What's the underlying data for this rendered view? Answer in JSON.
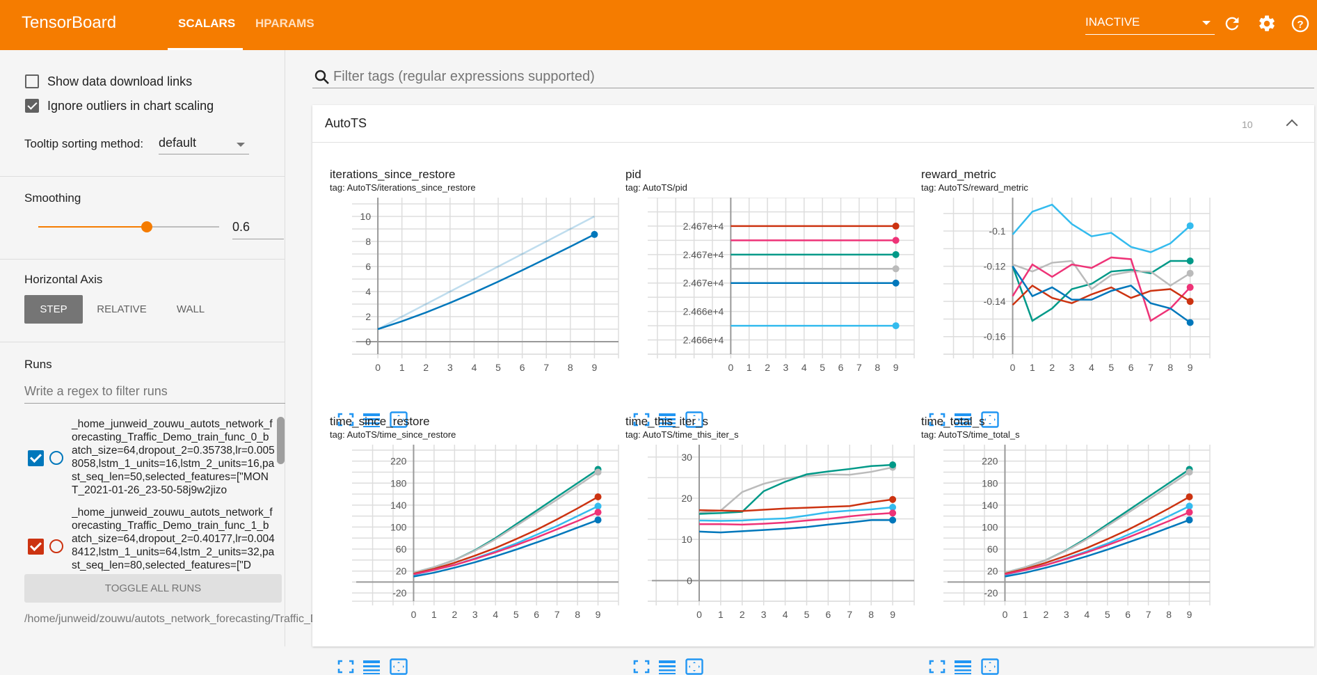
{
  "header": {
    "title": "TensorBoard",
    "tabs": [
      {
        "label": "SCALARS",
        "active": true
      },
      {
        "label": "HPARAMS",
        "active": false
      }
    ],
    "status_select": "INACTIVE",
    "icons": [
      "refresh-icon",
      "settings-icon",
      "help-icon"
    ]
  },
  "colors": {
    "brand": "#f57c00",
    "icon_blue": "#2196f3"
  },
  "sidebar": {
    "show_download_links": {
      "label": "Show data download links",
      "checked": false
    },
    "ignore_outliers": {
      "label": "Ignore outliers in chart scaling",
      "checked": true
    },
    "tooltip_sorting": {
      "label": "Tooltip sorting method:",
      "value": "default"
    },
    "smoothing": {
      "label": "Smoothing",
      "value": "0.6",
      "fraction": 0.6
    },
    "horizontal_axis": {
      "label": "Horizontal Axis",
      "options": [
        "STEP",
        "RELATIVE",
        "WALL"
      ],
      "selected": "STEP"
    },
    "runs": {
      "label": "Runs",
      "filter_placeholder": "Write a regex to filter runs",
      "items": [
        {
          "name": "_home_junweid_zouwu_autots_network_forecasting_Traffic_Demo_train_func_0_batch_size=64,dropout_2=0.35738,lr=0.0058058,lstm_1_units=16,lstm_2_units=16,past_seq_len=50,selected_features=[\"MONT_2021-01-26_23-50-58j9w2jizo",
          "color": "#0077bb",
          "checked": true
        },
        {
          "name": "_home_junweid_zouwu_autots_network_forecasting_Traffic_Demo_train_func_1_batch_size=64,dropout_2=0.40177,lr=0.0048412,lstm_1_units=64,lstm_2_units=32,past_seq_len=80,selected_features=[\"D",
          "color": "#cc3311",
          "checked": true
        }
      ],
      "toggle_all": "TOGGLE ALL RUNS",
      "logdir": "/home/junweid/zouwu/autots_network_forecasting/Traffic_Demo_leaderboard/"
    }
  },
  "main": {
    "filter_placeholder": "Filter tags (regular expressions supported)",
    "card": {
      "title": "AutoTS",
      "count": "10"
    }
  },
  "chart_data": [
    {
      "type": "line",
      "title": "iterations_since_restore",
      "tag": "tag: AutoTS/iterations_since_restore",
      "xlim": [
        -0.9,
        10
      ],
      "ylim": [
        -1,
        11.5
      ],
      "xticks": [
        0,
        1,
        2,
        3,
        4,
        5,
        6,
        7,
        8,
        9
      ],
      "yticks": [
        0,
        2,
        4,
        6,
        8,
        10
      ],
      "ytick_labels": [
        "0",
        "2",
        "4",
        "6",
        "8",
        "10"
      ],
      "grid": true,
      "series": [
        {
          "color": "#0077bb",
          "raw": [
            1,
            2,
            3,
            4,
            5,
            6,
            7,
            8,
            9,
            10
          ],
          "values": [
            1,
            1.63,
            2.33,
            3.1,
            3.92,
            4.79,
            5.7,
            6.64,
            7.59,
            8.56
          ]
        }
      ]
    },
    {
      "type": "line",
      "title": "pid",
      "tag": "tag: AutoTS/pid",
      "xlim": [
        -4.3,
        10
      ],
      "ylim": [
        24665,
        24676
      ],
      "xticks": [
        0,
        1,
        2,
        3,
        4,
        5,
        6,
        7,
        8,
        9
      ],
      "yticks": [
        24674,
        24672,
        24670,
        24668,
        24666
      ],
      "ytick_labels": [
        "2.467e+4",
        "2.467e+4",
        "2.467e+4",
        "2.466e+4",
        "2.466e+4"
      ],
      "grid": true,
      "series": [
        {
          "color": "#cc3311",
          "values": [
            24674,
            24674,
            24674,
            24674,
            24674,
            24674,
            24674,
            24674,
            24674,
            24674
          ]
        },
        {
          "color": "#ee3377",
          "values": [
            24673,
            24673,
            24673,
            24673,
            24673,
            24673,
            24673,
            24673,
            24673,
            24673
          ]
        },
        {
          "color": "#009988",
          "values": [
            24672,
            24672,
            24672,
            24672,
            24672,
            24672,
            24672,
            24672,
            24672,
            24672
          ]
        },
        {
          "color": "#bbbbbb",
          "values": [
            24671,
            24671,
            24671,
            24671,
            24671,
            24671,
            24671,
            24671,
            24671,
            24671
          ]
        },
        {
          "color": "#0077bb",
          "values": [
            24670,
            24670,
            24670,
            24670,
            24670,
            24670,
            24670,
            24670,
            24670,
            24670
          ]
        },
        {
          "color": "#33bbee",
          "values": [
            24667,
            24667,
            24667,
            24667,
            24667,
            24667,
            24667,
            24667,
            24667,
            24667
          ]
        }
      ]
    },
    {
      "type": "line",
      "title": "reward_metric",
      "tag": "tag: AutoTS/reward_metric",
      "xlim": [
        -3.3,
        10
      ],
      "ylim": [
        -0.17,
        -0.081
      ],
      "xticks": [
        0,
        1,
        2,
        3,
        4,
        5,
        6,
        7,
        8,
        9
      ],
      "yticks": [
        -0.1,
        -0.12,
        -0.14,
        -0.16
      ],
      "ytick_labels": [
        "-0.1",
        "-0.12",
        "-0.14",
        "-0.16"
      ],
      "grid": true,
      "series": [
        {
          "color": "#33bbee",
          "values": [
            -0.102,
            -0.089,
            -0.085,
            -0.096,
            -0.103,
            -0.101,
            -0.109,
            -0.112,
            -0.107,
            -0.097
          ]
        },
        {
          "color": "#009988",
          "values": [
            -0.12,
            -0.151,
            -0.144,
            -0.133,
            -0.13,
            -0.123,
            -0.122,
            -0.124,
            -0.117,
            -0.117
          ]
        },
        {
          "color": "#bbbbbb",
          "values": [
            -0.119,
            -0.123,
            -0.118,
            -0.117,
            -0.133,
            -0.125,
            -0.123,
            -0.123,
            -0.131,
            -0.124
          ]
        },
        {
          "color": "#ee3377",
          "values": [
            -0.137,
            -0.119,
            -0.126,
            -0.119,
            -0.121,
            -0.115,
            -0.116,
            -0.151,
            -0.144,
            -0.132
          ]
        },
        {
          "color": "#cc3311",
          "values": [
            -0.142,
            -0.131,
            -0.138,
            -0.141,
            -0.136,
            -0.132,
            -0.138,
            -0.134,
            -0.133,
            -0.14
          ]
        },
        {
          "color": "#0077bb",
          "values": [
            -0.12,
            -0.137,
            -0.132,
            -0.139,
            -0.139,
            -0.134,
            -0.131,
            -0.141,
            -0.144,
            -0.152
          ]
        }
      ]
    },
    {
      "type": "line",
      "title": "time_since_restore",
      "tag": "tag: AutoTS/time_since_restore",
      "xlim": [
        -2.8,
        10
      ],
      "ylim": [
        -35,
        250
      ],
      "xticks": [
        0,
        1,
        2,
        3,
        4,
        5,
        6,
        7,
        8,
        9
      ],
      "yticks": [
        -20,
        20,
        60,
        100,
        140,
        180,
        220
      ],
      "ytick_labels": [
        "-20",
        "20",
        "60",
        "100",
        "140",
        "180",
        "220"
      ],
      "grid": true,
      "series": [
        {
          "color": "#009988",
          "values": [
            17,
            27,
            40,
            58,
            80,
            105,
            130,
            155,
            180,
            205
          ]
        },
        {
          "color": "#bbbbbb",
          "values": [
            17,
            27,
            40,
            57,
            78,
            102,
            126,
            150,
            175,
            200
          ]
        },
        {
          "color": "#cc3311",
          "values": [
            15,
            24,
            35,
            48,
            62,
            78,
            95,
            114,
            134,
            155
          ]
        },
        {
          "color": "#33bbee",
          "values": [
            13,
            22,
            31,
            43,
            56,
            70,
            86,
            102,
            120,
            138
          ]
        },
        {
          "color": "#ee3377",
          "values": [
            14,
            22,
            31,
            42,
            54,
            67,
            81,
            96,
            111,
            127
          ]
        },
        {
          "color": "#0077bb",
          "values": [
            10,
            17,
            26,
            36,
            47,
            59,
            72,
            85,
            99,
            113
          ]
        }
      ]
    },
    {
      "type": "line",
      "title": "time_this_iter_s",
      "tag": "tag: AutoTS/time_this_iter_s",
      "xlim": [
        -2.2,
        10
      ],
      "ylim": [
        -5,
        33
      ],
      "xticks": [
        0,
        1,
        2,
        3,
        4,
        5,
        6,
        7,
        8,
        9
      ],
      "yticks": [
        0,
        10,
        20,
        30
      ],
      "ytick_labels": [
        "0",
        "10",
        "20",
        "30"
      ],
      "grid": true,
      "series": [
        {
          "color": "#bbbbbb",
          "values": [
            16.5,
            17,
            21.5,
            23.5,
            24.8,
            25.4,
            25.8,
            25.7,
            26.4,
            27.5
          ]
        },
        {
          "color": "#009988",
          "values": [
            16.2,
            16.4,
            16.7,
            21.7,
            24,
            25.8,
            26.5,
            27.1,
            27.8,
            28.1
          ]
        },
        {
          "color": "#cc3311",
          "values": [
            17.1,
            17,
            16.9,
            17.2,
            17.5,
            17.7,
            17.9,
            18.1,
            19,
            19.7
          ]
        },
        {
          "color": "#33bbee",
          "values": [
            14.6,
            14.5,
            14.6,
            14.9,
            15.1,
            15.8,
            16.6,
            17,
            17.3,
            17.8
          ]
        },
        {
          "color": "#ee3377",
          "values": [
            13.7,
            13.7,
            13.6,
            13.8,
            14.1,
            14.6,
            15,
            15.6,
            16.1,
            16.4
          ]
        },
        {
          "color": "#0077bb",
          "values": [
            11.9,
            11.7,
            12,
            12.3,
            12.6,
            13,
            13.6,
            14.1,
            14.7,
            14.7
          ]
        }
      ]
    },
    {
      "type": "line",
      "title": "time_total_s",
      "tag": "tag: AutoTS/time_total_s",
      "xlim": [
        -2.8,
        10
      ],
      "ylim": [
        -35,
        250
      ],
      "xticks": [
        0,
        1,
        2,
        3,
        4,
        5,
        6,
        7,
        8,
        9
      ],
      "yticks": [
        -20,
        20,
        60,
        100,
        140,
        180,
        220
      ],
      "ytick_labels": [
        "-20",
        "20",
        "60",
        "100",
        "140",
        "180",
        "220"
      ],
      "grid": true,
      "series": [
        {
          "color": "#009988",
          "values": [
            17,
            27,
            40,
            58,
            80,
            105,
            130,
            155,
            180,
            205
          ]
        },
        {
          "color": "#bbbbbb",
          "values": [
            17,
            27,
            40,
            57,
            78,
            102,
            126,
            150,
            175,
            200
          ]
        },
        {
          "color": "#cc3311",
          "values": [
            15,
            24,
            35,
            48,
            62,
            78,
            95,
            114,
            134,
            155
          ]
        },
        {
          "color": "#33bbee",
          "values": [
            13,
            22,
            31,
            43,
            56,
            70,
            86,
            102,
            120,
            138
          ]
        },
        {
          "color": "#ee3377",
          "values": [
            14,
            22,
            31,
            42,
            54,
            67,
            81,
            96,
            111,
            127
          ]
        },
        {
          "color": "#0077bb",
          "values": [
            10,
            17,
            26,
            36,
            47,
            59,
            72,
            85,
            99,
            113
          ]
        }
      ]
    }
  ]
}
